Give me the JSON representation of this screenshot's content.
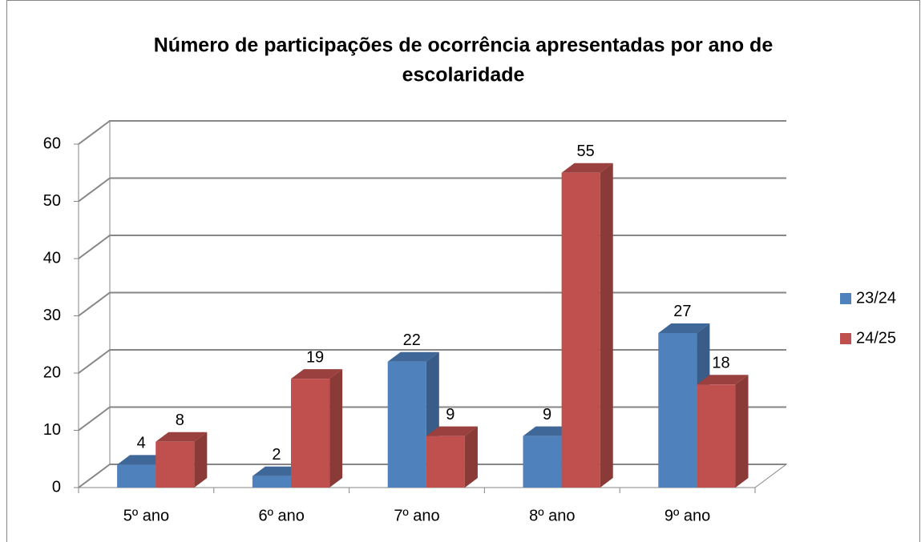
{
  "chart_data": {
    "type": "bar3d",
    "title": [
      "Número de participações de ocorrência apresentadas por ano de",
      "escolaridade"
    ],
    "categories": [
      "5º ano",
      "6º ano",
      "7º ano",
      "8º ano",
      "9º ano"
    ],
    "series": [
      {
        "name": "23/24",
        "color": "#4f81bd",
        "values": [
          4,
          2,
          22,
          9,
          27
        ]
      },
      {
        "name": "24/25",
        "color": "#c0504d",
        "values": [
          8,
          19,
          9,
          55,
          18
        ]
      }
    ],
    "ylim": [
      0,
      60
    ],
    "yticks": [
      0,
      10,
      20,
      30,
      40,
      50,
      60
    ],
    "grid": true,
    "legend": "right"
  }
}
